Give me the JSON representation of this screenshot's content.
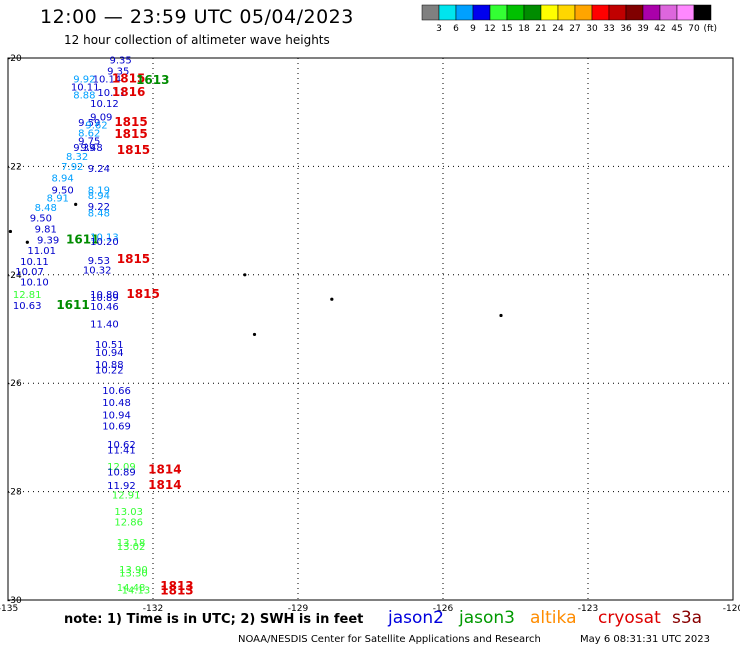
{
  "header": {
    "title": "12:00 — 23:59 UTC 05/04/2023",
    "subtitle": "12 hour collection of altimeter wave heights"
  },
  "legend": {
    "unit_label": "(ft)",
    "bins": [
      {
        "label": "3",
        "color": "#808080"
      },
      {
        "label": "6",
        "color": "#00e5ee"
      },
      {
        "label": "9",
        "color": "#00a0ff"
      },
      {
        "label": "12",
        "color": "#0000ee"
      },
      {
        "label": "15",
        "color": "#33ff33"
      },
      {
        "label": "18",
        "color": "#00c000"
      },
      {
        "label": "21",
        "color": "#008c00"
      },
      {
        "label": "24",
        "color": "#ffff00"
      },
      {
        "label": "27",
        "color": "#ffd700"
      },
      {
        "label": "30",
        "color": "#ffa500"
      },
      {
        "label": "33",
        "color": "#ff0000"
      },
      {
        "label": "36",
        "color": "#c00000"
      },
      {
        "label": "39",
        "color": "#800000"
      },
      {
        "label": "42",
        "color": "#aa00aa"
      },
      {
        "label": "45",
        "color": "#dd66dd"
      },
      {
        "label": "70",
        "color": "#ff88ff"
      },
      {
        "label": "",
        "color": "#000000"
      }
    ]
  },
  "map": {
    "lon_range": [
      -135,
      -120
    ],
    "lat_range": [
      -30,
      -20
    ],
    "lon_ticks": [
      "-135",
      "-132",
      "-129",
      "-126",
      "-123",
      "-120"
    ],
    "lat_ticks": [
      "-20",
      "-22",
      "-24",
      "-26",
      "-28",
      "-30"
    ],
    "islands": [
      {
        "lon": -134.95,
        "lat": -23.2
      },
      {
        "lon": -134.6,
        "lat": -23.4
      },
      {
        "lon": -133.6,
        "lat": -22.7
      },
      {
        "lon": -130.1,
        "lat": -24.0
      },
      {
        "lon": -128.3,
        "lat": -24.45
      },
      {
        "lon": -124.8,
        "lat": -24.75
      },
      {
        "lon": -129.9,
        "lat": -25.1
      }
    ]
  },
  "wave_labels": [
    {
      "text": "9.35",
      "lon": -132.9,
      "lat": -20.1,
      "color": "#0000cc"
    },
    {
      "text": "9.35",
      "lon": -132.95,
      "lat": -20.3,
      "color": "#0000cc"
    },
    {
      "text": "9.92",
      "lon": -133.65,
      "lat": -20.45,
      "color": "#00a0ff"
    },
    {
      "text": "10.14",
      "lon": -133.25,
      "lat": -20.45,
      "color": "#0000cc"
    },
    {
      "text": "1815",
      "lon": -132.85,
      "lat": -20.45,
      "color": "#e00000"
    },
    {
      "text": "1613",
      "lon": -132.35,
      "lat": -20.48,
      "color": "#008c00"
    },
    {
      "text": "10.11",
      "lon": -133.7,
      "lat": -20.6,
      "color": "#0000cc"
    },
    {
      "text": "10.11",
      "lon": -133.15,
      "lat": -20.7,
      "color": "#0000cc"
    },
    {
      "text": "1816",
      "lon": -132.85,
      "lat": -20.7,
      "color": "#e00000"
    },
    {
      "text": "8.88",
      "lon": -133.65,
      "lat": -20.75,
      "color": "#00a0ff"
    },
    {
      "text": "10.12",
      "lon": -133.3,
      "lat": -20.9,
      "color": "#0000cc"
    },
    {
      "text": "9.09",
      "lon": -133.3,
      "lat": -21.15,
      "color": "#0000cc"
    },
    {
      "text": "9.59",
      "lon": -133.55,
      "lat": -21.25,
      "color": "#0000cc"
    },
    {
      "text": "9.62",
      "lon": -133.4,
      "lat": -21.3,
      "color": "#00a0ff"
    },
    {
      "text": "1815",
      "lon": -132.8,
      "lat": -21.25,
      "color": "#e00000"
    },
    {
      "text": "8.62",
      "lon": -133.55,
      "lat": -21.45,
      "color": "#00a0ff"
    },
    {
      "text": "1815",
      "lon": -132.8,
      "lat": -21.48,
      "color": "#e00000"
    },
    {
      "text": "9.75",
      "lon": -133.55,
      "lat": -21.6,
      "color": "#0000cc"
    },
    {
      "text": "9.39",
      "lon": -133.65,
      "lat": -21.72,
      "color": "#0000cc"
    },
    {
      "text": "9.48",
      "lon": -133.5,
      "lat": -21.72,
      "color": "#0000cc"
    },
    {
      "text": "1815",
      "lon": -132.75,
      "lat": -21.77,
      "color": "#e00000"
    },
    {
      "text": "8.32",
      "lon": -133.8,
      "lat": -21.88,
      "color": "#00a0ff"
    },
    {
      "text": "7.92",
      "lon": -133.9,
      "lat": -22.07,
      "color": "#00a0ff"
    },
    {
      "text": "9.24",
      "lon": -133.35,
      "lat": -22.1,
      "color": "#0000cc"
    },
    {
      "text": "8.94",
      "lon": -134.1,
      "lat": -22.28,
      "color": "#00a0ff"
    },
    {
      "text": "9.50",
      "lon": -134.1,
      "lat": -22.5,
      "color": "#0000cc"
    },
    {
      "text": "8.19",
      "lon": -133.35,
      "lat": -22.5,
      "color": "#00a0ff"
    },
    {
      "text": "8.91",
      "lon": -134.2,
      "lat": -22.65,
      "color": "#00a0ff"
    },
    {
      "text": "8.94",
      "lon": -133.35,
      "lat": -22.6,
      "color": "#00a0ff"
    },
    {
      "text": "8.48",
      "lon": -134.45,
      "lat": -22.82,
      "color": "#00a0ff"
    },
    {
      "text": "9.22",
      "lon": -133.35,
      "lat": -22.8,
      "color": "#0000cc"
    },
    {
      "text": "8.48",
      "lon": -133.35,
      "lat": -22.92,
      "color": "#00a0ff"
    },
    {
      "text": "9.50",
      "lon": -134.55,
      "lat": -23.02,
      "color": "#0000cc"
    },
    {
      "text": "9.81",
      "lon": -134.45,
      "lat": -23.22,
      "color": "#0000cc"
    },
    {
      "text": "9.39",
      "lon": -134.4,
      "lat": -23.42,
      "color": "#0000cc"
    },
    {
      "text": "1611",
      "lon": -133.8,
      "lat": -23.42,
      "color": "#008c00"
    },
    {
      "text": "10.13",
      "lon": -133.3,
      "lat": -23.37,
      "color": "#00a0ff"
    },
    {
      "text": "10.20",
      "lon": -133.3,
      "lat": -23.45,
      "color": "#0000cc"
    },
    {
      "text": "11.01",
      "lon": -134.6,
      "lat": -23.62,
      "color": "#0000cc"
    },
    {
      "text": "10.11",
      "lon": -134.75,
      "lat": -23.82,
      "color": "#0000cc"
    },
    {
      "text": "9.53",
      "lon": -133.35,
      "lat": -23.8,
      "color": "#0000cc"
    },
    {
      "text": "1815",
      "lon": -132.75,
      "lat": -23.78,
      "color": "#e00000"
    },
    {
      "text": "10.07",
      "lon": -134.85,
      "lat": -24.0,
      "color": "#0000cc"
    },
    {
      "text": "10.32",
      "lon": -133.45,
      "lat": -23.98,
      "color": "#0000cc"
    },
    {
      "text": "10.10",
      "lon": -134.75,
      "lat": -24.2,
      "color": "#0000cc"
    },
    {
      "text": "12.81",
      "lon": -134.9,
      "lat": -24.43,
      "color": "#33ff33"
    },
    {
      "text": "10.80",
      "lon": -133.3,
      "lat": -24.43,
      "color": "#0000cc"
    },
    {
      "text": "1815",
      "lon": -132.55,
      "lat": -24.43,
      "color": "#e00000"
    },
    {
      "text": "10.89",
      "lon": -133.3,
      "lat": -24.48,
      "color": "#0000cc"
    },
    {
      "text": "10.63",
      "lon": -134.9,
      "lat": -24.63,
      "color": "#0000cc"
    },
    {
      "text": "1611",
      "lon": -134.0,
      "lat": -24.63,
      "color": "#008c00"
    },
    {
      "text": "10.46",
      "lon": -133.3,
      "lat": -24.65,
      "color": "#0000cc"
    },
    {
      "text": "11.40",
      "lon": -133.3,
      "lat": -24.97,
      "color": "#0000cc"
    },
    {
      "text": "10.51",
      "lon": -133.2,
      "lat": -25.35,
      "color": "#0000cc"
    },
    {
      "text": "10.94",
      "lon": -133.2,
      "lat": -25.5,
      "color": "#0000cc"
    },
    {
      "text": "10.88",
      "lon": -133.2,
      "lat": -25.72,
      "color": "#0000cc"
    },
    {
      "text": "10.22",
      "lon": -133.2,
      "lat": -25.82,
      "color": "#0000cc"
    },
    {
      "text": "10.66",
      "lon": -133.05,
      "lat": -26.2,
      "color": "#0000cc"
    },
    {
      "text": "10.48",
      "lon": -133.05,
      "lat": -26.42,
      "color": "#0000cc"
    },
    {
      "text": "10.94",
      "lon": -133.05,
      "lat": -26.65,
      "color": "#0000cc"
    },
    {
      "text": "10.69",
      "lon": -133.05,
      "lat": -26.85,
      "color": "#0000cc"
    },
    {
      "text": "10.62",
      "lon": -132.95,
      "lat": -27.2,
      "color": "#0000cc"
    },
    {
      "text": "11.41",
      "lon": -132.95,
      "lat": -27.3,
      "color": "#0000cc"
    },
    {
      "text": "12.09",
      "lon": -132.95,
      "lat": -27.6,
      "color": "#33ff33"
    },
    {
      "text": "10.89",
      "lon": -132.95,
      "lat": -27.7,
      "color": "#0000cc"
    },
    {
      "text": "1814",
      "lon": -132.1,
      "lat": -27.67,
      "color": "#e00000"
    },
    {
      "text": "11.92",
      "lon": -132.95,
      "lat": -27.95,
      "color": "#0000cc"
    },
    {
      "text": "1814",
      "lon": -132.1,
      "lat": -27.95,
      "color": "#e00000"
    },
    {
      "text": "12.91",
      "lon": -132.85,
      "lat": -28.13,
      "color": "#33ff33"
    },
    {
      "text": "13.03",
      "lon": -132.8,
      "lat": -28.43,
      "color": "#33ff33"
    },
    {
      "text": "12.86",
      "lon": -132.8,
      "lat": -28.63,
      "color": "#33ff33"
    },
    {
      "text": "13.18",
      "lon": -132.75,
      "lat": -29.0,
      "color": "#33ff33"
    },
    {
      "text": "13.02",
      "lon": -132.75,
      "lat": -29.08,
      "color": "#33ff33"
    },
    {
      "text": "13.90",
      "lon": -132.7,
      "lat": -29.5,
      "color": "#33ff33"
    },
    {
      "text": "13.30",
      "lon": -132.7,
      "lat": -29.57,
      "color": "#33ff33"
    },
    {
      "text": "1813",
      "lon": -131.85,
      "lat": -29.82,
      "color": "#e00000"
    },
    {
      "text": "14.48",
      "lon": -132.75,
      "lat": -29.83,
      "color": "#33ff33"
    },
    {
      "text": "14.13",
      "lon": -132.65,
      "lat": -29.88,
      "color": "#33ff33"
    },
    {
      "text": "1813",
      "lon": -131.85,
      "lat": -29.9,
      "color": "#e00000"
    }
  ],
  "footer": {
    "note": "note:  1) Time is in UTC;  2) SWH is in feet",
    "satellites": [
      {
        "name": "jason2",
        "color": "#0000dd"
      },
      {
        "name": "jason3",
        "color": "#009900"
      },
      {
        "name": "altika",
        "color": "#ff8c00"
      },
      {
        "name": "cryosat",
        "color": "#dd0000"
      },
      {
        "name": "s3a",
        "color": "#880000"
      }
    ],
    "credit": "NOAA/NESDIS Center for Satellite Applications and Research",
    "generated": "May  6 08:31:31 UTC 2023"
  }
}
